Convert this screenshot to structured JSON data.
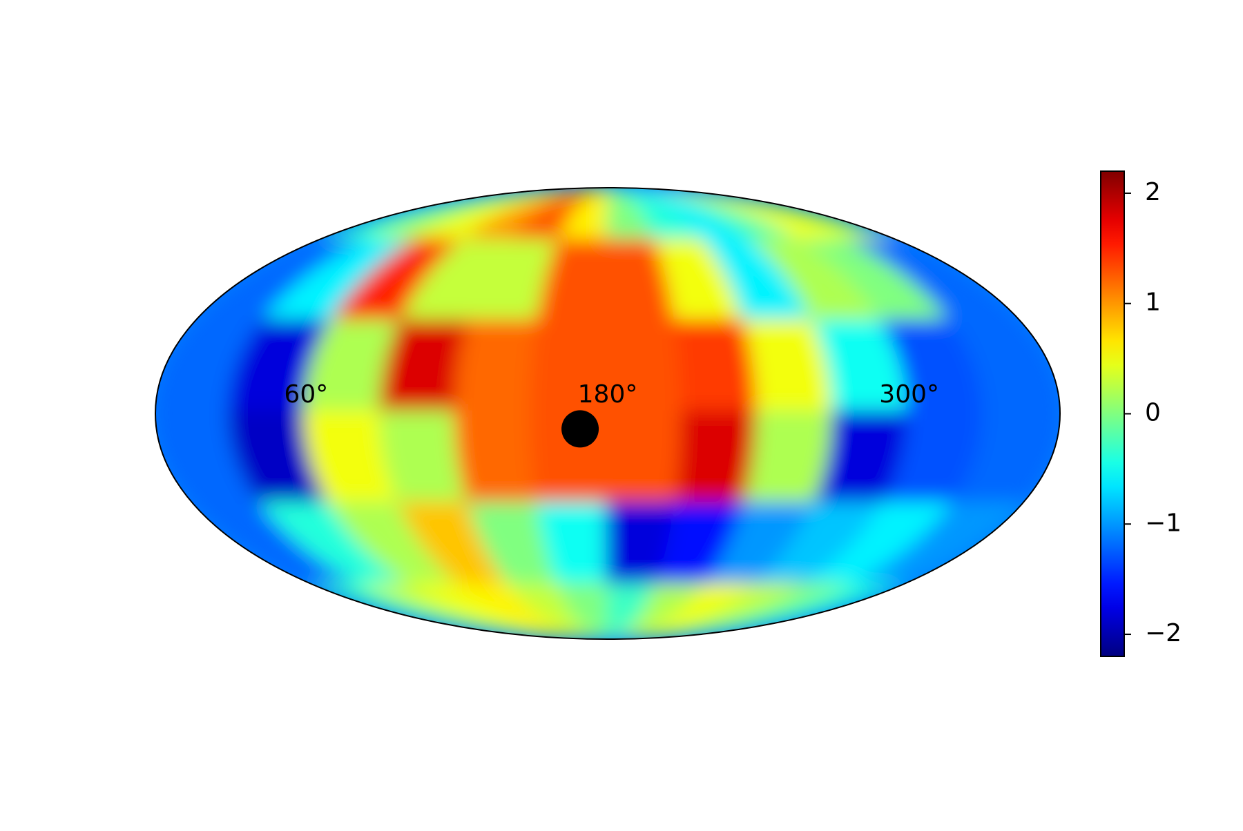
{
  "chart_data": {
    "type": "mollweide",
    "colormap": "jet",
    "lon": [
      15,
      45,
      75,
      105,
      135,
      165,
      195,
      225,
      255,
      285,
      315,
      345
    ],
    "lat": [
      75,
      45,
      15,
      -15,
      -45,
      -75
    ],
    "z": [
      [
        -0.3,
        0.2,
        0.5,
        1.0,
        1.3,
        0.6,
        0.0,
        -0.4,
        -0.6,
        -0.2,
        0.5,
        0.3
      ],
      [
        -1.2,
        -0.6,
        1.5,
        0.3,
        0.3,
        1.3,
        1.3,
        0.5,
        -0.6,
        0.2,
        0.0,
        -1.2
      ],
      [
        -1.2,
        -1.8,
        0.2,
        1.8,
        1.2,
        1.3,
        1.3,
        1.4,
        0.5,
        -0.5,
        -1.3,
        -1.2
      ],
      [
        -1.2,
        -1.9,
        0.5,
        0.2,
        1.2,
        1.3,
        1.3,
        1.8,
        0.2,
        -1.8,
        -1.3,
        -1.2
      ],
      [
        -1.2,
        -0.4,
        0.2,
        0.8,
        0.0,
        -0.5,
        -1.8,
        -1.6,
        -1.0,
        -0.8,
        -0.6,
        -1.0
      ],
      [
        -0.3,
        0.3,
        0.5,
        0.6,
        0.3,
        0.0,
        -0.3,
        0.2,
        0.5,
        0.3,
        0.0,
        -0.4
      ]
    ],
    "clim": [
      -2.2,
      2.2
    ],
    "cticks": [
      {
        "value": -2,
        "label": "−2"
      },
      {
        "value": -1,
        "label": "−1"
      },
      0,
      1,
      2
    ],
    "xticks": [
      {
        "value": 60,
        "label": "60°"
      },
      {
        "value": 180,
        "label": "180°"
      },
      {
        "value": 300,
        "label": "300°"
      }
    ],
    "marker": {
      "x": 169,
      "y": -5,
      "color": "#000000"
    }
  }
}
